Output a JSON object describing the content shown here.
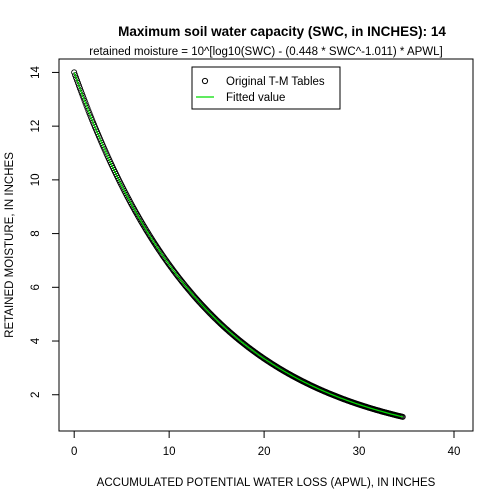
{
  "chart_data": {
    "type": "scatter",
    "title": "Maximum soil water capacity (SWC, in INCHES): 14",
    "subtitle": "retained moisture = 10^[log10(SWC) - (0.448 * SWC^-1.011) * APWL]",
    "xlabel": "ACCUMULATED POTENTIAL WATER LOSS (APWL), IN INCHES",
    "ylabel": "RETAINED MOISTURE, IN INCHES",
    "xlim": [
      -1.6,
      42
    ],
    "ylim": [
      0.65,
      14.5
    ],
    "xticks": [
      0,
      10,
      20,
      30,
      40
    ],
    "yticks": [
      2,
      4,
      6,
      8,
      10,
      12,
      14
    ],
    "grid": false,
    "legend_position": "top-center",
    "swc": 14,
    "coef_a": 0.448,
    "coef_b": -1.011,
    "apwl_range": [
      0,
      34.6
    ],
    "apwl_step": 0.1,
    "series": [
      {
        "name": "Original T-M Tables",
        "kind": "points",
        "color": "#000000"
      },
      {
        "name": "Fitted value",
        "kind": "line",
        "color": "#00dd00"
      }
    ]
  }
}
